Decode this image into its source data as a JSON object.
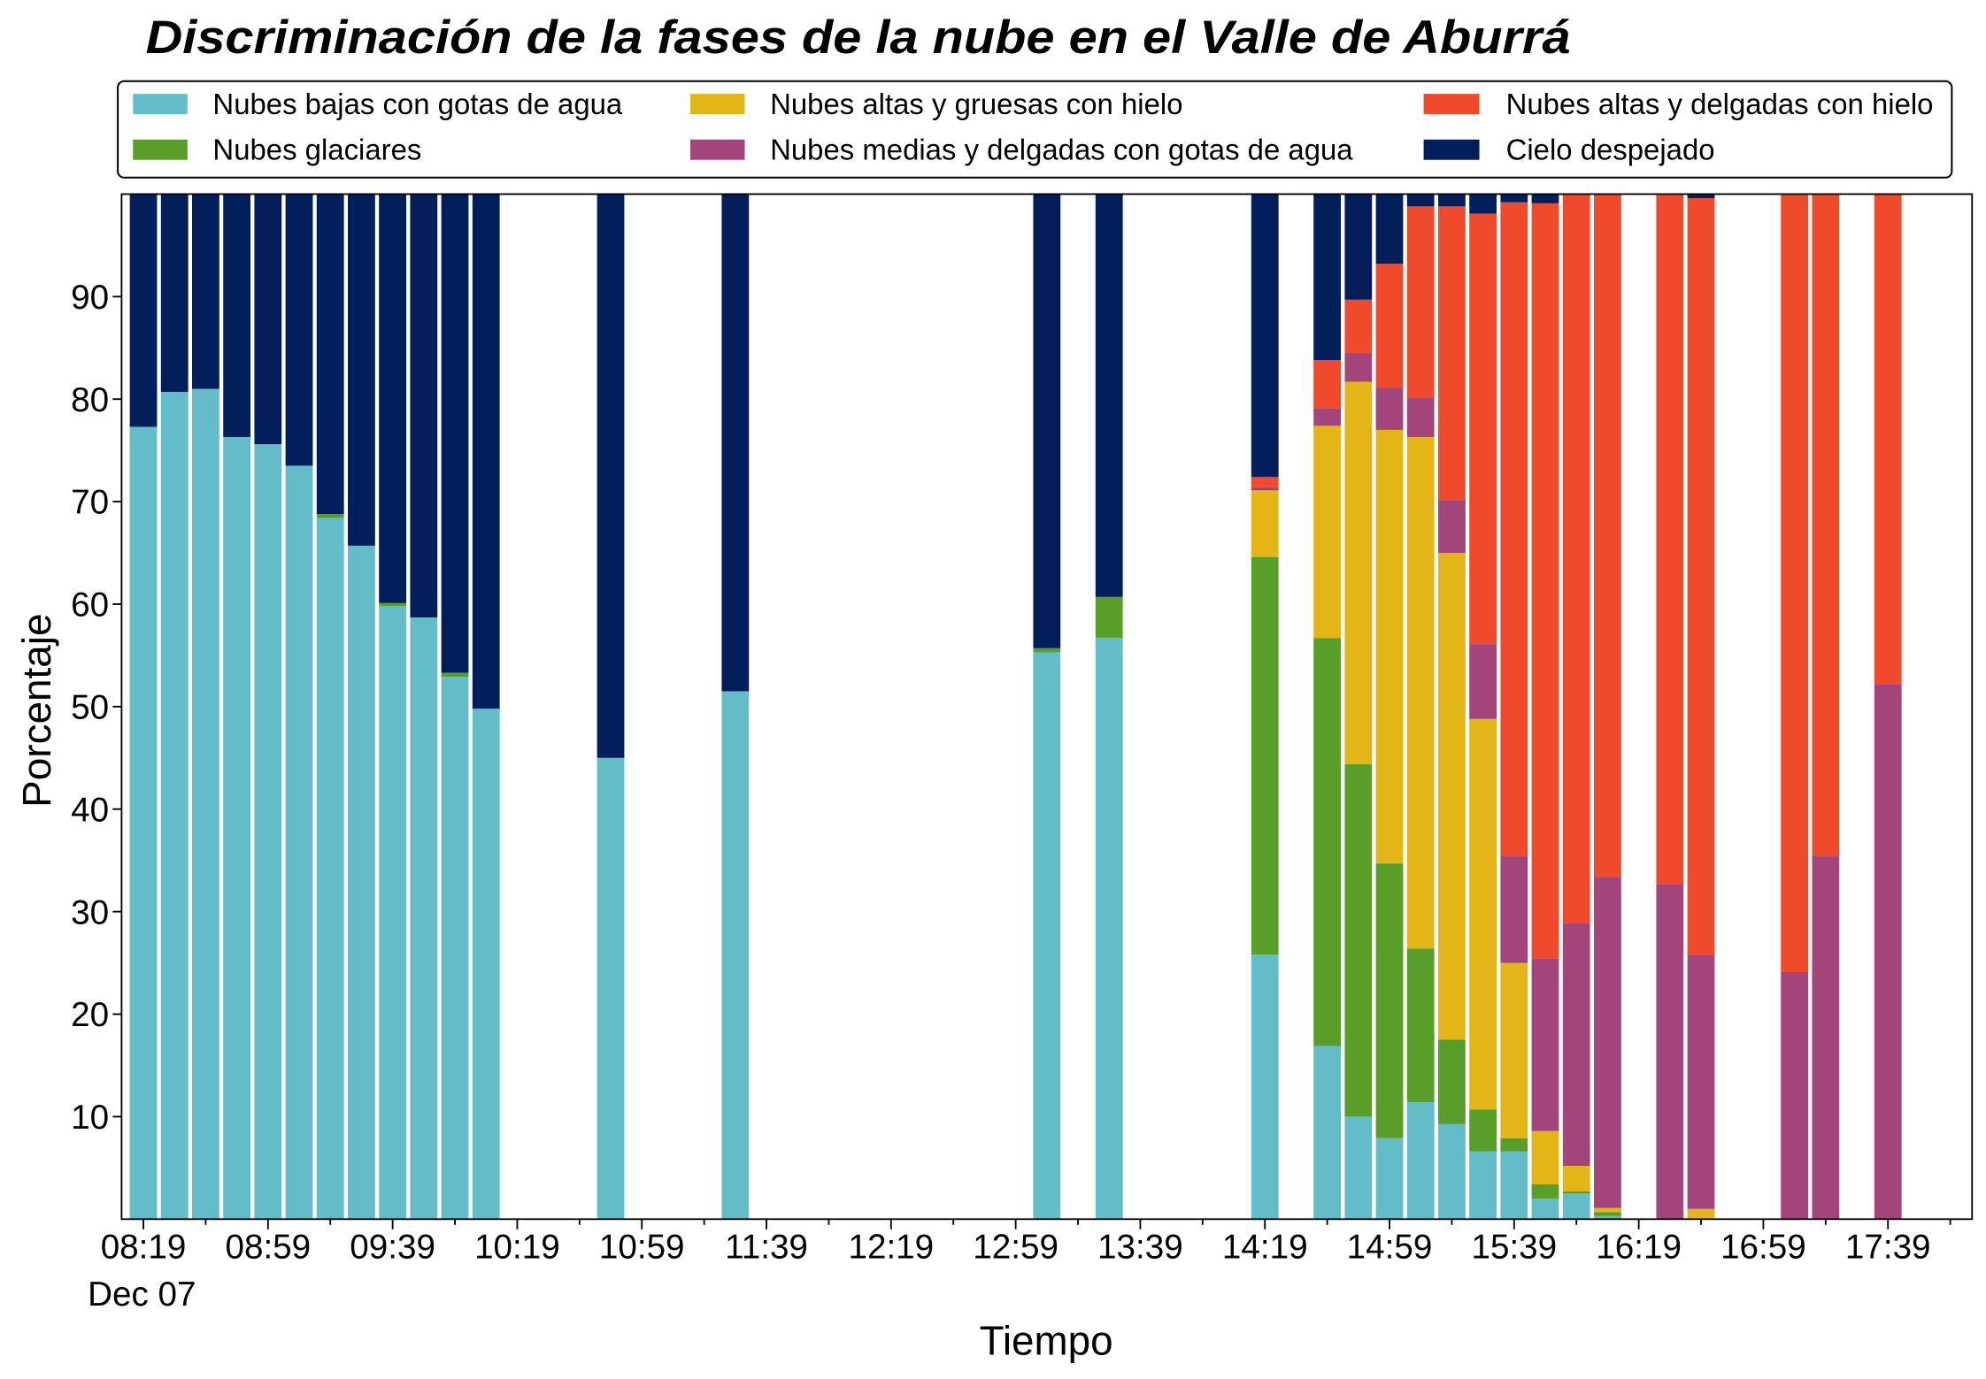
{
  "chart_data": {
    "type": "bar",
    "stacked": true,
    "title": "Discriminación de la fases de la nube en el Valle de Aburrá",
    "xlabel": "Tiempo",
    "ylabel": "Porcentaje",
    "ylim": [
      0,
      100
    ],
    "xlim": [
      "08:12",
      "18:06"
    ],
    "yticks": [
      10,
      20,
      30,
      40,
      50,
      60,
      70,
      80,
      90
    ],
    "xticks": [
      "08:19",
      "08:59",
      "09:39",
      "10:19",
      "10:59",
      "11:39",
      "12:19",
      "12:59",
      "13:39",
      "14:19",
      "14:59",
      "15:39",
      "16:19",
      "16:59",
      "17:39"
    ],
    "xtick_date": "Dec 07",
    "grid": false,
    "legend_placement": "top",
    "x": [
      "08:19",
      "08:29",
      "08:39",
      "08:49",
      "08:59",
      "09:09",
      "09:19",
      "09:29",
      "09:39",
      "09:49",
      "09:59",
      "10:09",
      "10:49",
      "11:29",
      "13:09",
      "13:29",
      "14:19",
      "14:39",
      "14:49",
      "14:59",
      "15:09",
      "15:19",
      "15:29",
      "15:39",
      "15:49",
      "15:59",
      "16:09",
      "16:29",
      "16:39",
      "17:09",
      "17:19",
      "17:39"
    ],
    "series": [
      {
        "name": "Nubes bajas con gotas de agua",
        "color": "#63BDC9",
        "values": [
          77.3,
          80.7,
          81.0,
          76.3,
          75.6,
          73.5,
          68.4,
          65.7,
          59.8,
          58.7,
          52.9,
          49.8,
          45.0,
          51.5,
          55.3,
          56.7,
          25.8,
          16.9,
          10.0,
          7.9,
          11.4,
          9.3,
          6.6,
          6.6,
          2.0,
          2.5,
          0.3,
          0,
          0,
          0,
          0,
          0
        ]
      },
      {
        "name": "Nubes glaciares",
        "color": "#5A9E2A",
        "values": [
          0,
          0,
          0,
          0,
          0,
          0,
          0.4,
          0,
          0.3,
          0,
          0.4,
          0,
          0,
          0,
          0.4,
          4.0,
          38.8,
          39.8,
          34.4,
          26.8,
          15.0,
          8.2,
          4.1,
          1.3,
          1.4,
          0.2,
          0.4,
          0,
          0,
          0,
          0,
          0
        ]
      },
      {
        "name": "Nubes altas y gruesas con hielo",
        "color": "#E3B516",
        "values": [
          0,
          0,
          0,
          0,
          0,
          0,
          0,
          0,
          0,
          0,
          0,
          0,
          0,
          0,
          0,
          0,
          6.5,
          20.7,
          37.3,
          42.3,
          49.9,
          47.5,
          38.1,
          17.1,
          5.2,
          2.5,
          0.4,
          0,
          1.0,
          0,
          0,
          0
        ]
      },
      {
        "name": "Nubes medias y delgadas con gotas de agua",
        "color": "#A3457B",
        "values": [
          0,
          0,
          0,
          0,
          0,
          0,
          0,
          0,
          0,
          0,
          0,
          0,
          0,
          0,
          0,
          0,
          0.3,
          1.7,
          2.8,
          4.1,
          3.8,
          5.1,
          7.3,
          10.4,
          16.8,
          23.7,
          32.3,
          32.7,
          24.8,
          24.1,
          35.4,
          52.2
        ]
      },
      {
        "name": "Nubes altas y delgadas con hielo",
        "color": "#EE4A2B",
        "values": [
          0,
          0,
          0,
          0,
          0,
          0,
          0,
          0,
          0,
          0,
          0,
          0,
          0,
          0,
          0,
          0,
          1.0,
          4.7,
          5.2,
          12.1,
          18.7,
          28.7,
          42.0,
          63.8,
          73.7,
          71.1,
          66.6,
          67.3,
          73.8,
          75.9,
          64.6,
          47.8
        ]
      },
      {
        "name": "Cielo despejado",
        "color": "#021F5C",
        "values": [
          22.7,
          19.3,
          19.0,
          23.7,
          24.4,
          26.5,
          31.2,
          34.3,
          39.9,
          41.3,
          46.7,
          50.2,
          55.0,
          48.5,
          44.3,
          39.3,
          27.6,
          16.2,
          10.3,
          6.8,
          1.2,
          1.2,
          1.9,
          0.8,
          0.9,
          0,
          0,
          0,
          0.4,
          0,
          0,
          0
        ]
      }
    ]
  }
}
